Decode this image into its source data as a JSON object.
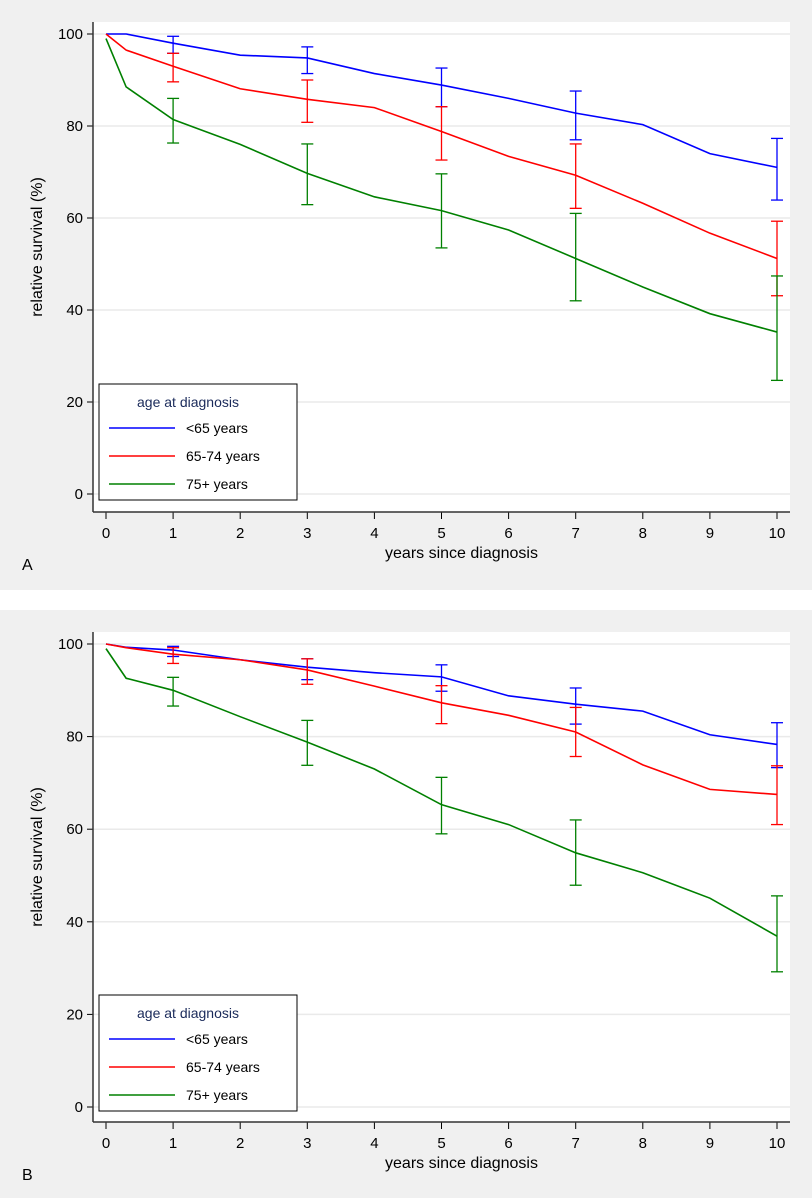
{
  "chart_data": [
    {
      "type": "line",
      "panel_label": "A",
      "title": "",
      "xlabel": "years since diagnosis",
      "ylabel": "relative survival (%)",
      "xlim": [
        0,
        10
      ],
      "ylim": [
        0,
        100
      ],
      "xticks": [
        0,
        1,
        2,
        3,
        4,
        5,
        6,
        7,
        8,
        9,
        10
      ],
      "yticks": [
        0,
        20,
        40,
        60,
        80,
        100
      ],
      "grid": true,
      "legend": {
        "title": "age at diagnosis",
        "placement": "bottom-left"
      },
      "x": [
        0,
        0.3,
        1,
        2,
        3,
        4,
        5,
        6,
        7,
        8,
        9,
        10
      ],
      "series": [
        {
          "name": "<65 years",
          "color": "#0000ff",
          "values": [
            100,
            100,
            98.0,
            95.4,
            94.8,
            91.4,
            88.9,
            86.0,
            82.8,
            80.3,
            74.0,
            71.0
          ],
          "error_bars": [
            {
              "x": 1,
              "low": 95.8,
              "high": 99.5
            },
            {
              "x": 3,
              "low": 91.4,
              "high": 97.2
            },
            {
              "x": 5,
              "low": 84.2,
              "high": 92.6
            },
            {
              "x": 7,
              "low": 77.0,
              "high": 87.6
            },
            {
              "x": 10,
              "low": 63.9,
              "high": 77.3
            }
          ]
        },
        {
          "name": "65-74 years",
          "color": "#ff0000",
          "values": [
            100,
            96.5,
            93.0,
            88.1,
            85.8,
            84.0,
            78.8,
            73.4,
            69.3,
            63.2,
            56.7,
            51.2
          ],
          "error_bars": [
            {
              "x": 1,
              "low": 89.6,
              "high": 95.8
            },
            {
              "x": 3,
              "low": 80.8,
              "high": 90.0
            },
            {
              "x": 5,
              "low": 72.6,
              "high": 84.2
            },
            {
              "x": 7,
              "low": 62.1,
              "high": 76.1
            },
            {
              "x": 10,
              "low": 43.1,
              "high": 59.3
            }
          ]
        },
        {
          "name": "75+ years",
          "color": "#008000",
          "values": [
            99,
            88.5,
            81.4,
            76.0,
            69.7,
            64.6,
            61.6,
            57.4,
            51.2,
            45.0,
            39.2,
            35.2
          ],
          "error_bars": [
            {
              "x": 1,
              "low": 76.3,
              "high": 86.0
            },
            {
              "x": 3,
              "low": 62.9,
              "high": 76.1
            },
            {
              "x": 5,
              "low": 53.5,
              "high": 69.6
            },
            {
              "x": 7,
              "low": 42.0,
              "high": 61.0
            },
            {
              "x": 10,
              "low": 24.7,
              "high": 47.4
            }
          ]
        }
      ]
    },
    {
      "type": "line",
      "panel_label": "B",
      "title": "",
      "xlabel": "years since diagnosis",
      "ylabel": "relative survival (%)",
      "xlim": [
        0,
        10
      ],
      "ylim": [
        0,
        100
      ],
      "xticks": [
        0,
        1,
        2,
        3,
        4,
        5,
        6,
        7,
        8,
        9,
        10
      ],
      "yticks": [
        0,
        20,
        40,
        60,
        80,
        100
      ],
      "grid": true,
      "legend": {
        "title": "age at diagnosis",
        "placement": "bottom-left"
      },
      "x": [
        0,
        0.3,
        1,
        2,
        3,
        4,
        5,
        6,
        7,
        8,
        9,
        10
      ],
      "series": [
        {
          "name": "<65 years",
          "color": "#0000ff",
          "values": [
            100,
            99.3,
            98.7,
            96.6,
            95.0,
            93.8,
            92.9,
            88.8,
            87.0,
            85.5,
            80.4,
            78.3
          ],
          "error_bars": [
            {
              "x": 1,
              "low": 97.3,
              "high": 99.5
            },
            {
              "x": 3,
              "low": 92.3,
              "high": 96.8
            },
            {
              "x": 5,
              "low": 89.8,
              "high": 95.5
            },
            {
              "x": 7,
              "low": 82.7,
              "high": 90.5
            },
            {
              "x": 10,
              "low": 73.3,
              "high": 83.0
            }
          ]
        },
        {
          "name": "65-74 years",
          "color": "#ff0000",
          "values": [
            100,
            99.2,
            97.8,
            96.6,
            94.4,
            90.9,
            87.3,
            84.6,
            81.0,
            73.9,
            68.6,
            67.5
          ],
          "error_bars": [
            {
              "x": 1,
              "low": 95.8,
              "high": 99.2
            },
            {
              "x": 3,
              "low": 91.3,
              "high": 96.8
            },
            {
              "x": 5,
              "low": 82.8,
              "high": 91.0
            },
            {
              "x": 7,
              "low": 75.7,
              "high": 86.3
            },
            {
              "x": 10,
              "low": 61.0,
              "high": 73.7
            }
          ]
        },
        {
          "name": "75+ years",
          "color": "#008000",
          "values": [
            99,
            92.6,
            90.0,
            84.3,
            78.8,
            73.0,
            65.3,
            61.0,
            54.9,
            50.6,
            45.1,
            36.9
          ],
          "error_bars": [
            {
              "x": 1,
              "low": 86.6,
              "high": 92.8
            },
            {
              "x": 3,
              "low": 73.8,
              "high": 83.5
            },
            {
              "x": 5,
              "low": 59.0,
              "high": 71.2
            },
            {
              "x": 7,
              "low": 47.9,
              "high": 62.0
            },
            {
              "x": 10,
              "low": 29.2,
              "high": 45.6
            }
          ]
        }
      ]
    }
  ]
}
